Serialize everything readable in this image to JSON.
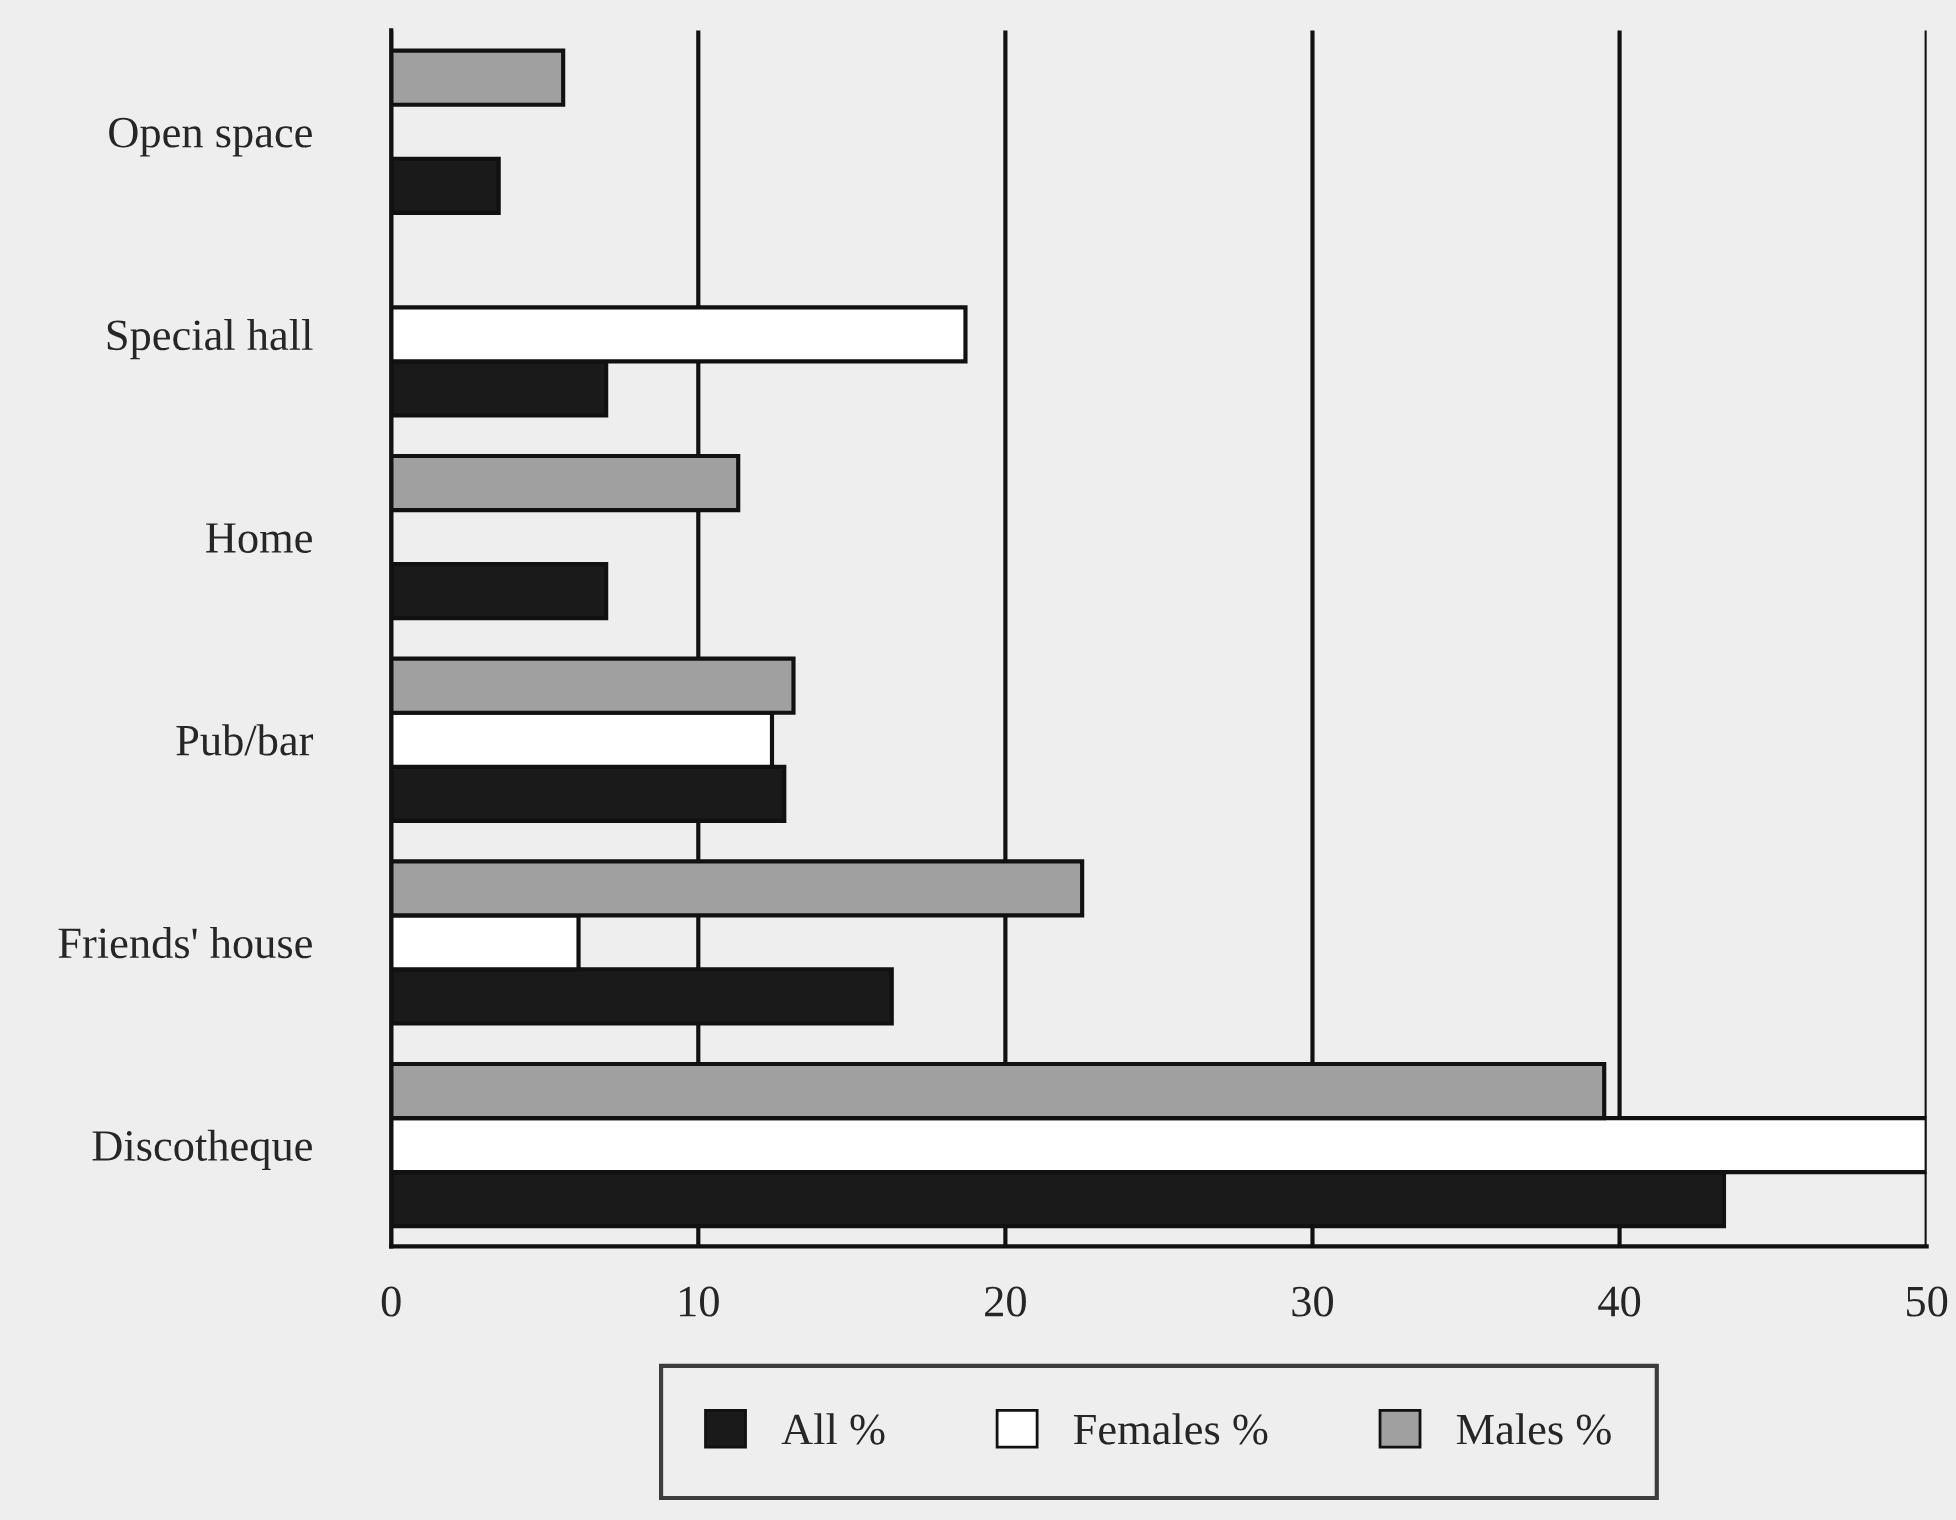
{
  "chart_data": {
    "type": "bar",
    "orientation": "horizontal",
    "categories": [
      "Open space",
      "Special hall",
      "Home",
      "Pub/bar",
      "Friends' house",
      "Discotheque"
    ],
    "series": [
      {
        "name": "All %",
        "color": "#1a1a1a",
        "values": [
          3.5,
          7.0,
          7.0,
          12.8,
          16.3,
          43.4
        ]
      },
      {
        "name": "Females %",
        "color": "#ffffff",
        "values": [
          null,
          18.7,
          null,
          12.4,
          6.1,
          50
        ]
      },
      {
        "name": "Males %",
        "color": "#a0a0a0",
        "values": [
          5.6,
          null,
          11.3,
          13.1,
          22.5,
          39.5
        ]
      }
    ],
    "xlim": [
      0,
      50
    ],
    "xticks": [
      0,
      10,
      20,
      30,
      40,
      50
    ],
    "grid": "x",
    "legend": "bottom"
  }
}
